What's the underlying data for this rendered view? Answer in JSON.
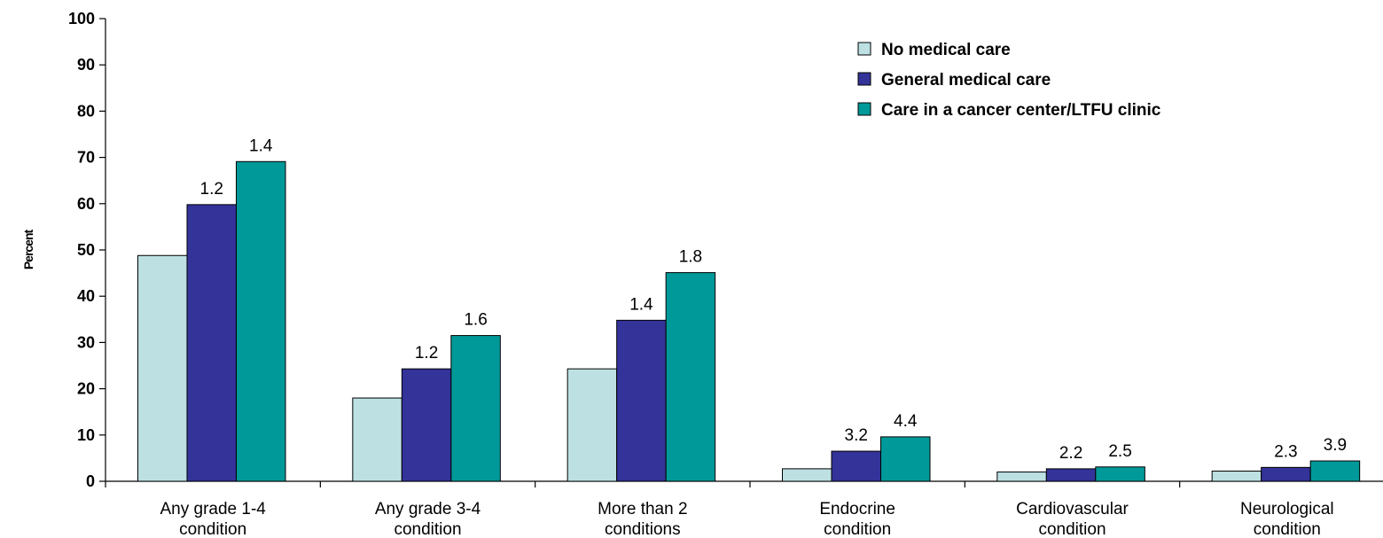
{
  "chart_data": {
    "type": "bar",
    "ylabel": "Percent",
    "ylim": [
      0,
      100
    ],
    "yticks": [
      0,
      10,
      20,
      30,
      40,
      50,
      60,
      70,
      80,
      90,
      100
    ],
    "grid": false,
    "legend_position": "top-right",
    "categories": [
      [
        "Any grade 1-4",
        "condition"
      ],
      [
        "Any grade 3-4",
        "condition"
      ],
      [
        "More than 2",
        "conditions"
      ],
      [
        "Endocrine",
        "condition"
      ],
      [
        "Cardiovascular",
        "condition"
      ],
      [
        "Neurological",
        "condition"
      ]
    ],
    "series": [
      {
        "name": "No medical care",
        "color": "#bde0e3",
        "values": [
          48.8,
          18.0,
          24.3,
          2.7,
          2.0,
          2.2
        ],
        "labels": [
          "",
          "",
          "",
          "",
          "",
          ""
        ]
      },
      {
        "name": "General medical care",
        "color": "#333399",
        "values": [
          59.8,
          24.3,
          34.8,
          6.5,
          2.7,
          3.0
        ],
        "labels": [
          "1.2",
          "1.2",
          "1.4",
          "3.2",
          "2.2",
          "2.3"
        ]
      },
      {
        "name": "Care in a cancer center/LTFU clinic",
        "color": "#009999",
        "values": [
          69.1,
          31.5,
          45.1,
          9.6,
          3.1,
          4.4
        ],
        "labels": [
          "1.4",
          "1.6",
          "1.8",
          "4.4",
          "2.5",
          "3.9"
        ]
      }
    ]
  }
}
